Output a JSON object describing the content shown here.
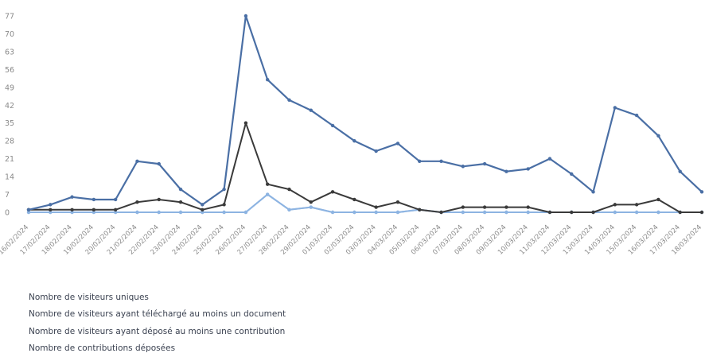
{
  "chart_data": {
    "type": "line",
    "title": "",
    "xlabel": "",
    "ylabel": "",
    "ylim": [
      0,
      77
    ],
    "yticks": [
      0,
      7,
      14,
      21,
      28,
      35,
      42,
      49,
      56,
      63,
      70,
      77
    ],
    "grid": false,
    "legend_position": "bottom-left",
    "x": [
      "16/02/2024",
      "17/02/2024",
      "18/02/2024",
      "19/02/2024",
      "20/02/2024",
      "21/02/2024",
      "22/02/2024",
      "23/02/2024",
      "24/02/2024",
      "25/02/2024",
      "26/02/2024",
      "27/02/2024",
      "28/02/2024",
      "29/02/2024",
      "01/03/2024",
      "02/03/2024",
      "03/03/2024",
      "04/03/2024",
      "05/03/2024",
      "06/03/2024",
      "07/03/2024",
      "08/03/2024",
      "09/03/2024",
      "10/03/2024",
      "11/03/2024",
      "12/03/2024",
      "13/03/2024",
      "14/03/2024",
      "15/03/2024",
      "16/03/2024",
      "17/03/2024",
      "18/03/2024"
    ],
    "series": [
      {
        "name": "Nombre de visiteurs uniques",
        "color": "#4a6fa5",
        "values": [
          1,
          3,
          6,
          5,
          5,
          20,
          19,
          9,
          3,
          9,
          77,
          52,
          44,
          40,
          34,
          28,
          24,
          27,
          20,
          20,
          18,
          19,
          16,
          17,
          21,
          15,
          8,
          41,
          38,
          30,
          16,
          8
        ]
      },
      {
        "name": "Nombre de visiteurs ayant téléchargé au moins un document",
        "color": "#3a3a3a",
        "values": [
          1,
          1,
          1,
          1,
          1,
          4,
          5,
          4,
          1,
          3,
          35,
          11,
          9,
          4,
          8,
          5,
          2,
          4,
          1,
          0,
          2,
          2,
          2,
          2,
          0,
          0,
          0,
          3,
          3,
          5,
          0,
          0
        ]
      },
      {
        "name": "Nombre de visiteurs ayant déposé au moins une contribution",
        "color": "#8db4e2",
        "values": [
          0,
          0,
          0,
          0,
          0,
          0,
          0,
          0,
          0,
          0,
          0,
          7,
          1,
          2,
          0,
          0,
          0,
          0,
          1,
          0,
          0,
          0,
          0,
          0,
          0,
          0,
          0,
          0,
          0,
          0,
          0,
          0
        ]
      },
      {
        "name": "Nombre de contributions déposées",
        "color": "#9bb8e0",
        "values": [
          0,
          0,
          0,
          0,
          0,
          0,
          0,
          0,
          0,
          0,
          0,
          7,
          1,
          2,
          0,
          0,
          0,
          0,
          1,
          0,
          0,
          0,
          0,
          0,
          0,
          0,
          0,
          0,
          0,
          0,
          0,
          0
        ]
      }
    ]
  }
}
